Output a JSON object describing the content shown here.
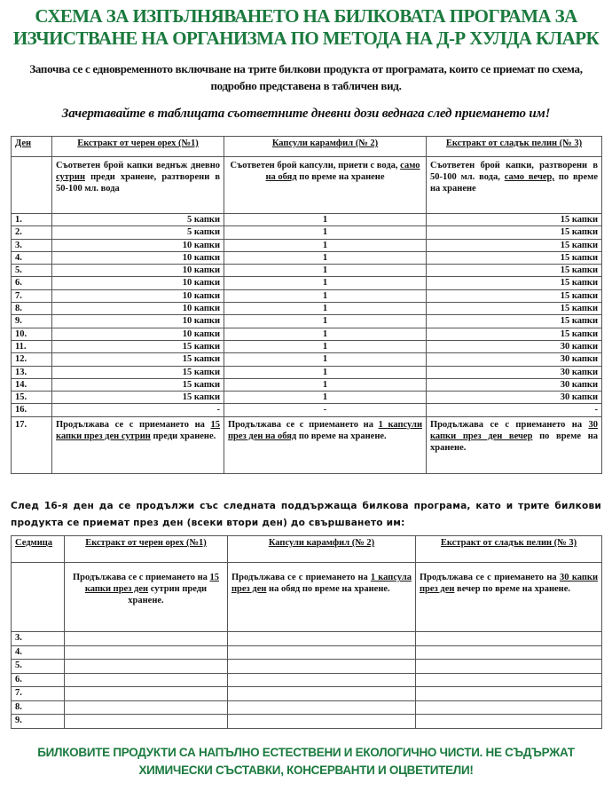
{
  "title": [
    "СХЕМА ЗА ИЗПЪЛНЯВАНЕТО НА  БИЛКОВАТА  ПРОГРАМА ЗА",
    "ИЗЧИСТВАНЕ НА ОРГАНИЗМА ПО МЕТОДА НА Д-Р ХУЛДА КЛАРК"
  ],
  "intro": "Започва се с едновременното включване на трите билкови продукта от програмата, които се приемат по схема, подробно представена в табличен вид.",
  "instruction": "Зачертавайте в таблицата съответните дневни дози веднага след приемането им!",
  "colors": {
    "title_green": "#1b7a3e",
    "text": "#111111"
  },
  "table1": {
    "headers": [
      "Ден",
      "Екстракт от черен орех (№1)",
      "Капсули карамфил (№ 2)",
      "Екстракт от  сладък  пелин (№ 3)"
    ],
    "description": [
      [
        {
          "t": "Съответен брой капки веднъж дневно "
        },
        {
          "t": "сутрин",
          "u": true
        },
        {
          "t": " преди хранене, разтворени в 50-100 мл.  вода"
        }
      ],
      [
        {
          "t": "Съответен брой капсули,  приети с вода, "
        },
        {
          "t": "само на обяд",
          "u": true
        },
        {
          "t": " по време на  хранене"
        }
      ],
      [
        {
          "t": "Съответен брой капки, разтворени в 50-100 мл. вода, "
        },
        {
          "t": "само вечер,",
          "u": true
        },
        {
          "t": " по време на  хранене"
        }
      ]
    ],
    "rows": [
      [
        "1.",
        "5 капки",
        "1",
        "15 капки"
      ],
      [
        "2.",
        "5 капки",
        "1",
        "15 капки"
      ],
      [
        "3.",
        "10 капки",
        "1",
        "15 капки"
      ],
      [
        "4.",
        "10 капки",
        "1",
        "15 капки"
      ],
      [
        "5.",
        "10 капки",
        "1",
        "15 капки"
      ],
      [
        "6.",
        "10 капки",
        "1",
        "15 капки"
      ],
      [
        "7.",
        "10 капки",
        "1",
        "15 капки"
      ],
      [
        "8.",
        "10 капки",
        "1",
        "15 капки"
      ],
      [
        "9.",
        "10 капки",
        "1",
        "15 капки"
      ],
      [
        "10.",
        "10 капки",
        "1",
        "15 капки"
      ],
      [
        "11.",
        "15 капки",
        "1",
        "30 капки"
      ],
      [
        "12.",
        "15 капки",
        "1",
        "30 капки"
      ],
      [
        "13.",
        "15 капки",
        "1",
        "30 капки"
      ],
      [
        "14.",
        "15 капки",
        "1",
        "30 капки"
      ],
      [
        "15.",
        "15 капки",
        "1",
        "30 капки"
      ],
      [
        "16.",
        "-",
        "-",
        "-"
      ]
    ],
    "last_row": {
      "day": "17.",
      "cells": [
        [
          {
            "t": "Продължава се с приемането на "
          },
          {
            "t": "15 капки през ден сутрин",
            "u": true
          },
          {
            "t": " преди хранене."
          }
        ],
        [
          {
            "t": "Продължава се с приемането на "
          },
          {
            "t": "1 капсули през ден на обяд",
            "u": true
          },
          {
            "t": " по време на хранене."
          }
        ],
        [
          {
            "t": "Продължава се с приемането на "
          },
          {
            "t": "30 капки през ден вечер",
            "u": true
          },
          {
            "t": " по време на хранене."
          }
        ]
      ]
    }
  },
  "after_text": "След 16-я ден да се продължи със следната поддържаща билкова програма, като и трите билкови продукта се приемат през ден (всеки втори ден) до свършването им:",
  "table2": {
    "headers": [
      "Седмица",
      "Екстракт от черен орех (№1)",
      "Капсули карамфил (№ 2)",
      "Екстракт от  сладък пелин (№ 3)"
    ],
    "description": [
      [
        {
          "t": "Продължава се с приемането на "
        },
        {
          "t": "15 капки през ден",
          "u": true
        },
        {
          "t": " сутрин преди хранене."
        }
      ],
      [
        {
          "t": "Продължава се с приемането на "
        },
        {
          "t": "1 капсула през ден",
          "u": true
        },
        {
          "t": " на обяд по време на хранене."
        }
      ],
      [
        {
          "t": "Продължава се с приемането на "
        },
        {
          "t": "30 капки през ден",
          "u": true
        },
        {
          "t": " вечер по време на хранене."
        }
      ]
    ],
    "weeks": [
      "3.",
      "4.",
      "5.",
      "6.",
      "7.",
      "8.",
      "9."
    ]
  },
  "footer": [
    "БИЛКОВИТЕ ПРОДУКТИ СА НАПЪЛНО ЕСТЕСТВЕНИ И ЕКОЛОГИЧНО ЧИСТИ. НЕ СЪДЪРЖАТ",
    "ХИМИЧЕСКИ СЪСТАВКИ, КОНСЕРВАНТИ И ОЦВЕТИТЕЛИ!"
  ]
}
